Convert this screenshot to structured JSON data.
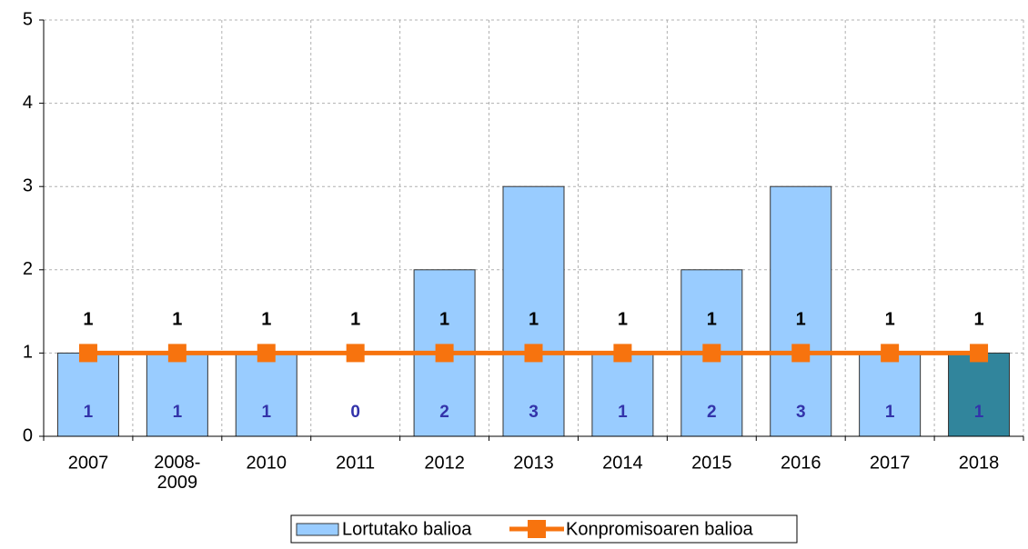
{
  "chart_data": {
    "type": "bar-line",
    "categories": [
      "2007",
      "2008-\n2009",
      "2010",
      "2011",
      "2012",
      "2013",
      "2014",
      "2015",
      "2016",
      "2017",
      "2018"
    ],
    "series": [
      {
        "name": "Lortutako balioa",
        "type": "bar",
        "color": "#99ccff",
        "colors": [
          "#99ccff",
          "#99ccff",
          "#99ccff",
          "#99ccff",
          "#99ccff",
          "#99ccff",
          "#99ccff",
          "#99ccff",
          "#99ccff",
          "#99ccff",
          "#31859c"
        ],
        "values": [
          1,
          1,
          1,
          0,
          2,
          3,
          1,
          2,
          3,
          1,
          1
        ]
      },
      {
        "name": "Konpromisoaren balioa",
        "type": "line",
        "color": "#f7730e",
        "values": [
          1,
          1,
          1,
          1,
          1,
          1,
          1,
          1,
          1,
          1,
          1
        ]
      }
    ],
    "ylim": [
      0,
      5
    ],
    "yticks": [
      0,
      1,
      2,
      3,
      4,
      5
    ],
    "grid": true,
    "legend": "bottom"
  }
}
